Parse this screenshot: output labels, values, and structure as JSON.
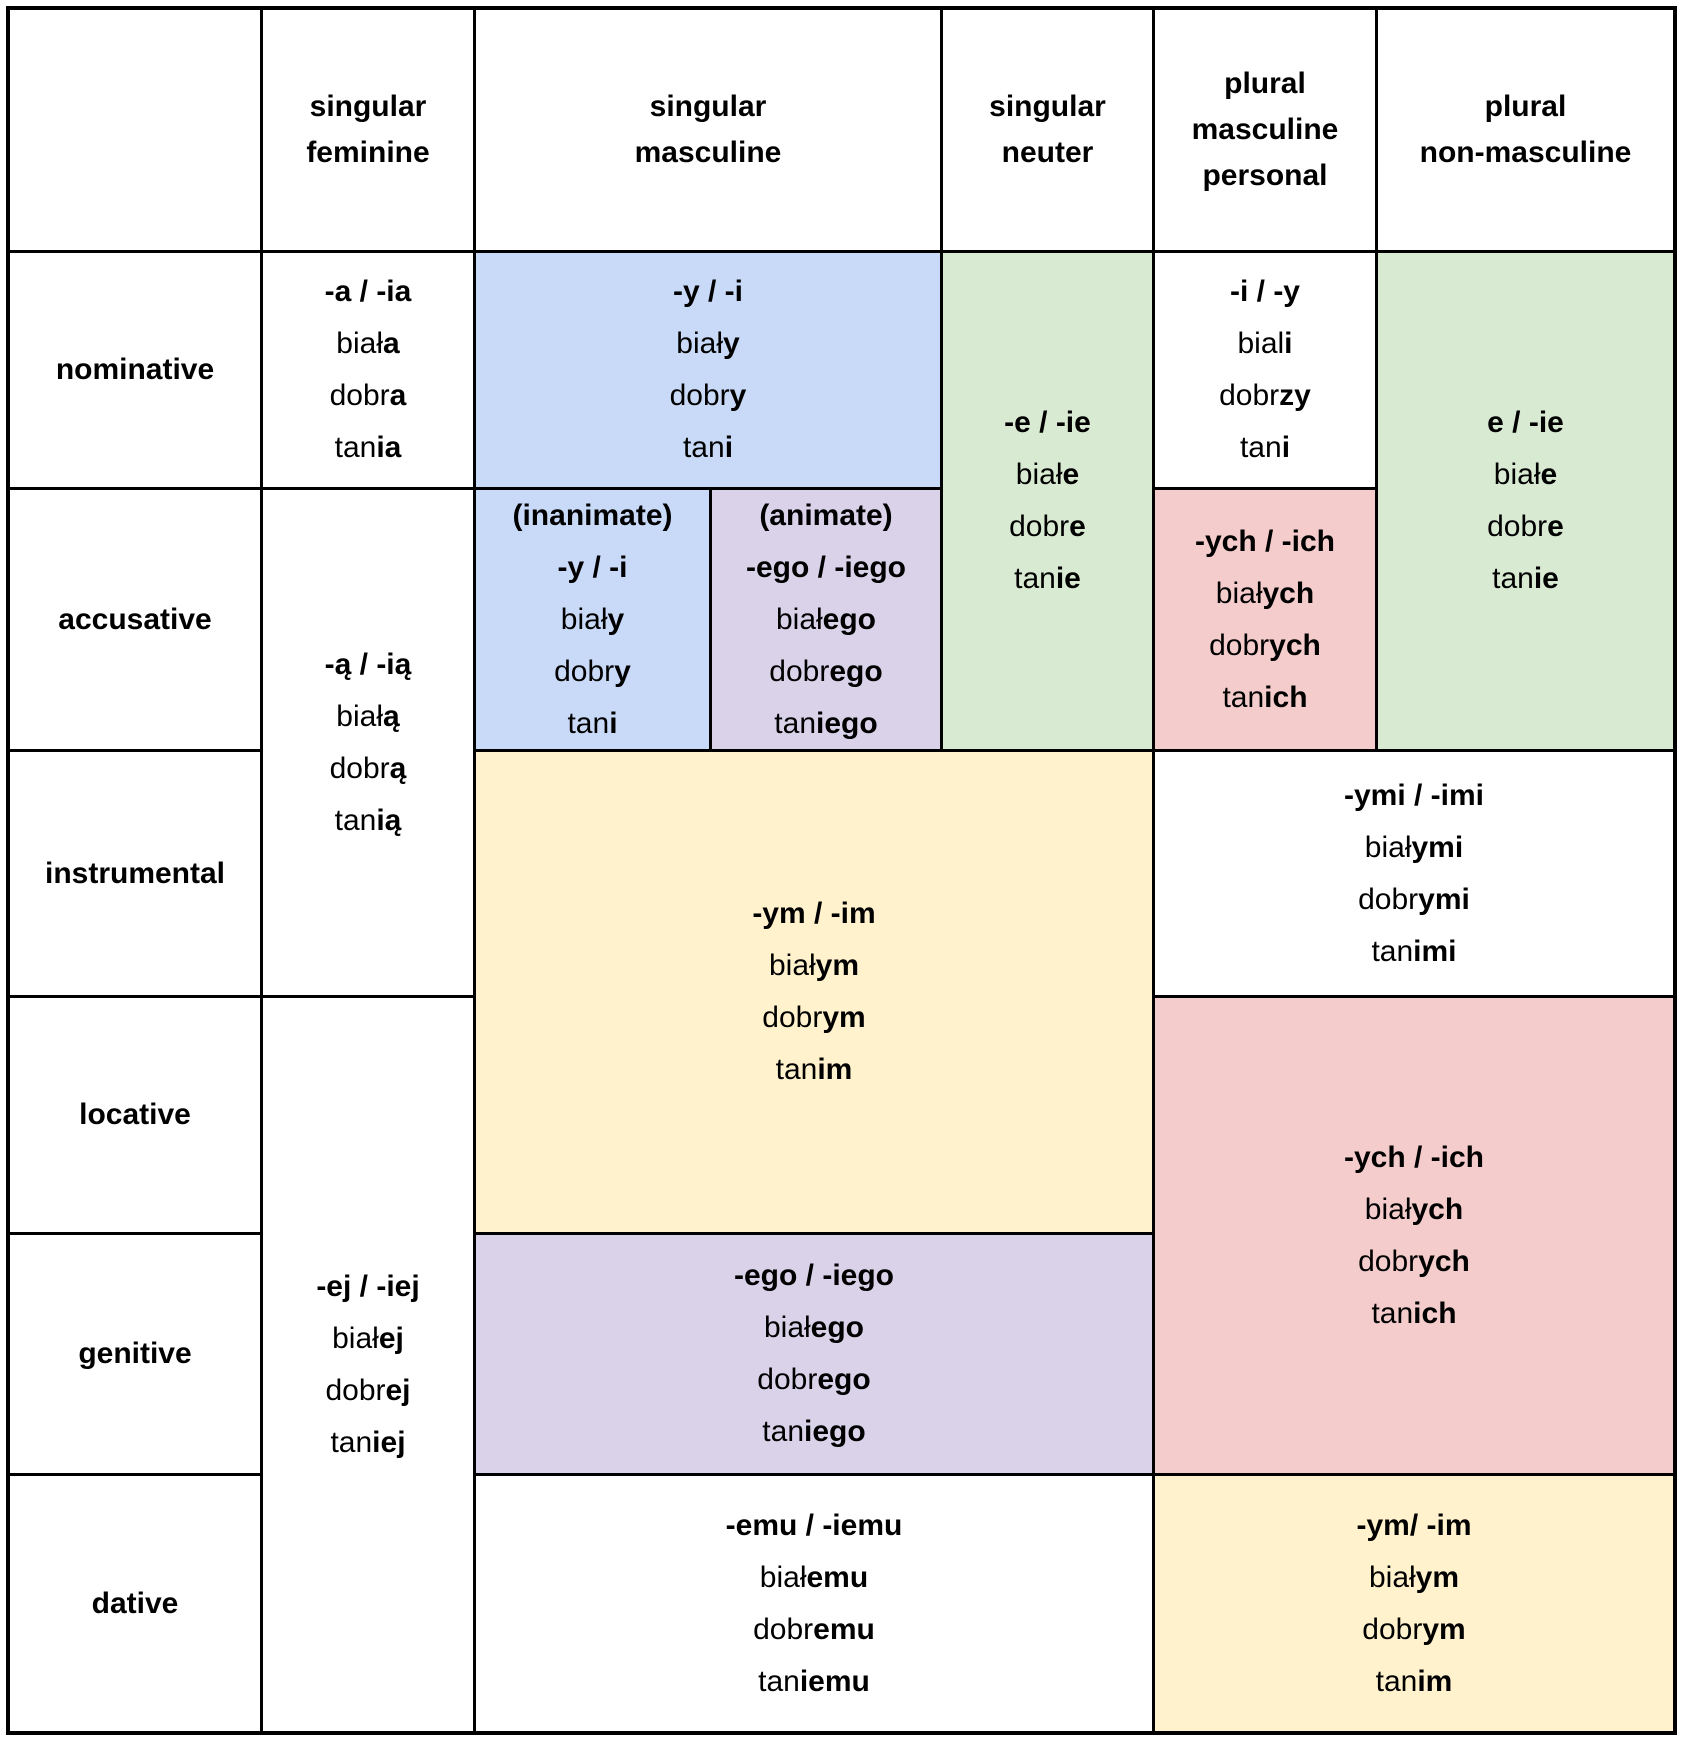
{
  "colors": {
    "white": "#ffffff",
    "blue": "#c9daf8",
    "green": "#d9ead3",
    "purple": "#d9d2e9",
    "pink": "#f4cccc",
    "yellow": "#fff2cc",
    "line": "#000000",
    "text": "#000000"
  },
  "table": {
    "corner_label": "",
    "headers": {
      "feminine": "singular\nfeminine",
      "masculine": "singular\nmasculine",
      "neuter": "singular\nneuter",
      "plural_masculine_personal": "plural\nmasculine\npersonal",
      "plural_non_masculine": "plural\nnon-masculine"
    },
    "row_labels": {
      "nominative": "nominative",
      "accusative": "accusative",
      "instrumental": "instrumental",
      "locative": "locative",
      "genitive": "genitive",
      "dative": "dative"
    },
    "cells": {
      "nominative_feminine": {
        "bg": "white",
        "lines": [
          [
            [
              "-a / -ia",
              1
            ]
          ],
          [
            [
              "biał",
              0
            ],
            [
              "a",
              1
            ]
          ],
          [
            [
              "dobr",
              0
            ],
            [
              "a",
              1
            ]
          ],
          [
            [
              "tan",
              0
            ],
            [
              "ia",
              1
            ]
          ]
        ]
      },
      "nominative_masculine": {
        "bg": "blue",
        "lines": [
          [
            [
              "-y / -i",
              1
            ]
          ],
          [
            [
              "biał",
              0
            ],
            [
              "y",
              1
            ]
          ],
          [
            [
              "dobr",
              0
            ],
            [
              "y",
              1
            ]
          ],
          [
            [
              "tan",
              0
            ],
            [
              "i",
              1
            ]
          ]
        ]
      },
      "neuter_nominative_accusative": {
        "bg": "green",
        "lines": [
          [
            [
              "-e / -ie",
              1
            ]
          ],
          [
            [
              "biał",
              0
            ],
            [
              "e",
              1
            ]
          ],
          [
            [
              "dobr",
              0
            ],
            [
              "e",
              1
            ]
          ],
          [
            [
              "tan",
              0
            ],
            [
              "ie",
              1
            ]
          ]
        ]
      },
      "nominative_plural_masculine_personal": {
        "bg": "white",
        "lines": [
          [
            [
              "-i / -y",
              1
            ]
          ],
          [
            [
              "bial",
              0
            ],
            [
              "i",
              1
            ]
          ],
          [
            [
              "dobr",
              0
            ],
            [
              "zy",
              1
            ]
          ],
          [
            [
              "tan",
              0
            ],
            [
              "i",
              1
            ]
          ]
        ]
      },
      "plural_non_masculine_nominative_accusative": {
        "bg": "green",
        "lines": [
          [
            [
              "e / -ie",
              1
            ]
          ],
          [
            [
              "biał",
              0
            ],
            [
              "e",
              1
            ]
          ],
          [
            [
              "dobr",
              0
            ],
            [
              "e",
              1
            ]
          ],
          [
            [
              "tan",
              0
            ],
            [
              "ie",
              1
            ]
          ]
        ]
      },
      "feminine_accusative_instrumental": {
        "bg": "white",
        "lines": [
          [
            [
              "-ą / -ią",
              1
            ]
          ],
          [
            [
              "biał",
              0
            ],
            [
              "ą",
              1
            ]
          ],
          [
            [
              "dobr",
              0
            ],
            [
              "ą",
              1
            ]
          ],
          [
            [
              "tan",
              0
            ],
            [
              "ią",
              1
            ]
          ]
        ]
      },
      "accusative_masculine_inanimate": {
        "bg": "blue",
        "lines": [
          [
            [
              "(inanimate)",
              1
            ]
          ],
          [
            [
              "-y / -i",
              1
            ]
          ],
          [
            [
              "biał",
              0
            ],
            [
              "y",
              1
            ]
          ],
          [
            [
              "dobr",
              0
            ],
            [
              "y",
              1
            ]
          ],
          [
            [
              "tan",
              0
            ],
            [
              "i",
              1
            ]
          ]
        ]
      },
      "accusative_masculine_animate": {
        "bg": "purple",
        "lines": [
          [
            [
              "(animate)",
              1
            ]
          ],
          [
            [
              "-ego / -iego",
              1
            ]
          ],
          [
            [
              "biał",
              0
            ],
            [
              "ego",
              1
            ]
          ],
          [
            [
              "dobr",
              0
            ],
            [
              "ego",
              1
            ]
          ],
          [
            [
              "tan",
              0
            ],
            [
              "iego",
              1
            ]
          ]
        ]
      },
      "accusative_plural_masculine_personal": {
        "bg": "pink",
        "lines": [
          [
            [
              "-ych / -ich",
              1
            ]
          ],
          [
            [
              "biał",
              0
            ],
            [
              "ych",
              1
            ]
          ],
          [
            [
              "dobr",
              0
            ],
            [
              "ych",
              1
            ]
          ],
          [
            [
              "tan",
              0
            ],
            [
              "ich",
              1
            ]
          ]
        ]
      },
      "masculine_neuter_instrumental_locative": {
        "bg": "yellow",
        "lines": [
          [
            [
              "-ym / -im",
              1
            ]
          ],
          [
            [
              "biał",
              0
            ],
            [
              "ym",
              1
            ]
          ],
          [
            [
              "dobr",
              0
            ],
            [
              "ym",
              1
            ]
          ],
          [
            [
              "tan",
              0
            ],
            [
              "im",
              1
            ]
          ]
        ]
      },
      "plural_instrumental": {
        "bg": "white",
        "lines": [
          [
            [
              "-ymi / -imi",
              1
            ]
          ],
          [
            [
              "biał",
              0
            ],
            [
              "ymi",
              1
            ]
          ],
          [
            [
              "dobr",
              0
            ],
            [
              "ymi",
              1
            ]
          ],
          [
            [
              "tan",
              0
            ],
            [
              "imi",
              1
            ]
          ]
        ]
      },
      "plural_locative_genitive": {
        "bg": "pink",
        "lines": [
          [
            [
              "-ych / -ich",
              1
            ]
          ],
          [
            [
              "biał",
              0
            ],
            [
              "ych",
              1
            ]
          ],
          [
            [
              "dobr",
              0
            ],
            [
              "ych",
              1
            ]
          ],
          [
            [
              "tan",
              0
            ],
            [
              "ich",
              1
            ]
          ]
        ]
      },
      "feminine_locative_genitive_dative": {
        "bg": "white",
        "lines": [
          [
            [
              "-ej / -iej",
              1
            ]
          ],
          [
            [
              "biał",
              0
            ],
            [
              "ej",
              1
            ]
          ],
          [
            [
              "dobr",
              0
            ],
            [
              "ej",
              1
            ]
          ],
          [
            [
              "tan",
              0
            ],
            [
              "iej",
              1
            ]
          ]
        ]
      },
      "masculine_neuter_genitive": {
        "bg": "purple",
        "lines": [
          [
            [
              "-ego / -iego",
              1
            ]
          ],
          [
            [
              "biał",
              0
            ],
            [
              "ego",
              1
            ]
          ],
          [
            [
              "dobr",
              0
            ],
            [
              "ego",
              1
            ]
          ],
          [
            [
              "tan",
              0
            ],
            [
              "iego",
              1
            ]
          ]
        ]
      },
      "masculine_neuter_dative": {
        "bg": "white",
        "lines": [
          [
            [
              "-emu / -iemu",
              1
            ]
          ],
          [
            [
              "biał",
              0
            ],
            [
              "emu",
              1
            ]
          ],
          [
            [
              "dobr",
              0
            ],
            [
              "emu",
              1
            ]
          ],
          [
            [
              "tan",
              0
            ],
            [
              "iemu",
              1
            ]
          ]
        ]
      },
      "plural_dative": {
        "bg": "yellow",
        "lines": [
          [
            [
              "-ym/ -im",
              1
            ]
          ],
          [
            [
              "biał",
              0
            ],
            [
              "ym",
              1
            ]
          ],
          [
            [
              "dobr",
              0
            ],
            [
              "ym",
              1
            ]
          ],
          [
            [
              "tan",
              0
            ],
            [
              "im",
              1
            ]
          ]
        ]
      }
    }
  }
}
